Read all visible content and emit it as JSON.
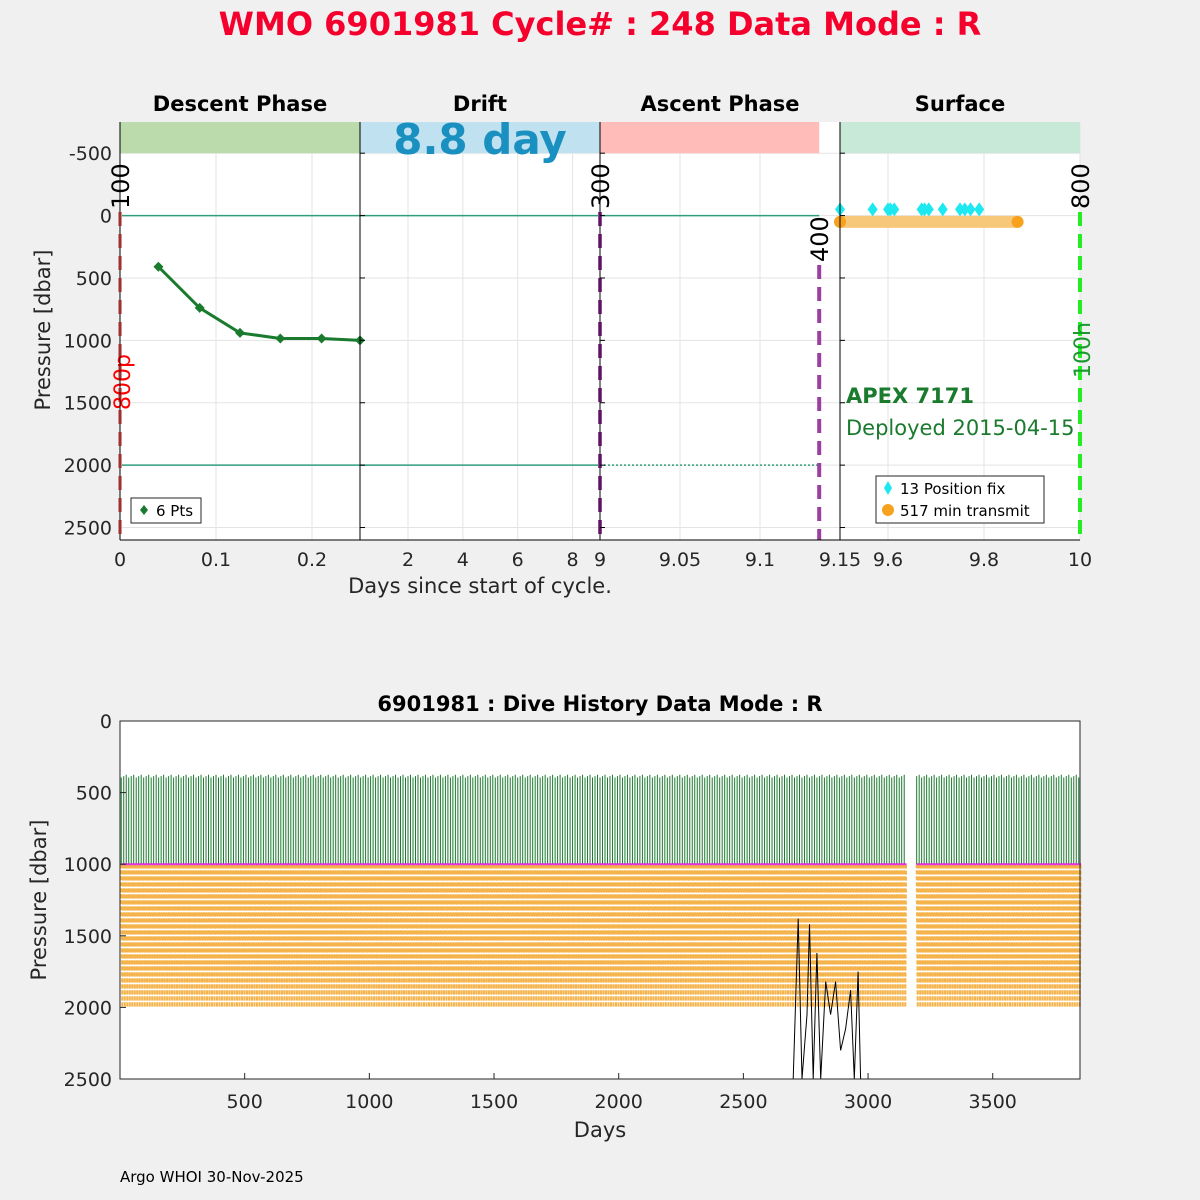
{
  "header": {
    "title": "WMO 6901981   Cycle# : 248   Data Mode : R",
    "title_color": "#f5002d"
  },
  "footer": {
    "credit": "Argo WHOI 30-Nov-2025"
  },
  "chart_data": [
    {
      "id": "cycle",
      "type": "line",
      "ylabel": "Pressure [dbar]",
      "xlabel": "Days since start of cycle.",
      "ylim": [
        -750,
        2600
      ],
      "y_reversed": true,
      "yticks": [
        -500,
        0,
        500,
        1000,
        1500,
        2000,
        2500
      ],
      "grid": true,
      "phases": [
        {
          "name": "Descent Phase",
          "xlim": [
            0,
            0.25
          ],
          "xticks": [
            0,
            0.1,
            0.2
          ],
          "xtick_labels": [
            "0",
            "0.1",
            "0.2"
          ],
          "band_color": "#bcdbad",
          "band_end": 0.25
        },
        {
          "name": "Drift",
          "xlim": [
            0.25,
            9
          ],
          "xticks": [
            2,
            4,
            6,
            8,
            9
          ],
          "xtick_labels": [
            "2",
            "4",
            "6",
            "8",
            "9"
          ],
          "band_color": "#c0e1ef",
          "band_end": 9,
          "band_text": "8.8 day"
        },
        {
          "name": "Ascent Phase",
          "xlim": [
            9,
            9.15
          ],
          "xticks": [
            9.05,
            9.1,
            9.15
          ],
          "xtick_labels": [
            "9.05",
            "9.1",
            "9.15"
          ],
          "band_color": "#ffbcb8",
          "band_end": 9.137
        },
        {
          "name": "Surface",
          "xlim": [
            9.5,
            10
          ],
          "xticks": [
            9.6,
            9.8,
            10
          ],
          "xtick_labels": [
            "9.6",
            "9.8",
            "10"
          ],
          "band_color": "#c8e8d8",
          "band_end": 10
        }
      ],
      "band_text_color": "#1a90c0",
      "reference_lines": [
        {
          "pressure": 0,
          "color": "#2e9e7e"
        },
        {
          "pressure": 2000,
          "color": "#2e9e7e"
        }
      ],
      "descent_profile": {
        "name": "6 Pts",
        "color": "#1a7a2e",
        "x": [
          0.04,
          0.083,
          0.125,
          0.167,
          0.21,
          0.25
        ],
        "y": [
          410,
          740,
          940,
          985,
          985,
          1000
        ]
      },
      "markers": [
        {
          "label": "100",
          "phase": 0,
          "x": 0,
          "color": "#f08080",
          "side_label": "800p",
          "side_color": "#ff0000"
        },
        {
          "label": "300",
          "phase": 2,
          "x": 9,
          "color": "#9b3fa0"
        },
        {
          "label": "400",
          "phase": 2,
          "x": 9.137,
          "color": "#9b3fa0"
        },
        {
          "label": "800",
          "phase": 3,
          "x": 10,
          "color": "#22ee22",
          "side_label": "100h",
          "side_color": "#1a9a2e"
        }
      ],
      "position_fix": {
        "name": "13 Position fix",
        "color": "#1ee8f0",
        "x": [
          9.5,
          9.568,
          9.6,
          9.605,
          9.613,
          9.67,
          9.676,
          9.685,
          9.714,
          9.75,
          9.76,
          9.772,
          9.79
        ],
        "y": [
          -50,
          -50,
          -50,
          -50,
          -50,
          -50,
          -50,
          -50,
          -50,
          -50,
          -50,
          -50,
          -50
        ]
      },
      "transmit": {
        "name": "517 min transmit",
        "color": "#f7a11d",
        "bar_color": "#f8c87a",
        "x": [
          9.5,
          9.87
        ],
        "y": [
          50,
          50
        ]
      },
      "float_model": "APEX 7171",
      "deployed": "Deployed 2015-04-15",
      "info_color": "#1a7a2e"
    },
    {
      "id": "history",
      "type": "line",
      "title": "6901981 : Dive History      Data Mode : R",
      "xlabel": "Days",
      "ylabel": "Pressure [dbar]",
      "xlim": [
        0,
        3850
      ],
      "ylim": [
        0,
        2500
      ],
      "y_reversed": true,
      "xticks": [
        500,
        1000,
        1500,
        2000,
        2500,
        3000,
        3500
      ],
      "yticks": [
        0,
        500,
        1000,
        1500,
        2000,
        2500
      ],
      "cycle_period_days": 10,
      "series": [
        {
          "color": "#1a7a2e",
          "pressure_range": [
            400,
            1000
          ]
        },
        {
          "color": "#ee22ee",
          "pressure_range": [
            1000,
            1000
          ]
        },
        {
          "color": "#f5b44b",
          "pressure_range": [
            1000,
            2000
          ]
        }
      ],
      "gaps_days": [
        [
          3150,
          3190
        ]
      ],
      "deep_excursions": {
        "color": "#000000",
        "x": [
          2700,
          2720,
          2735,
          2755,
          2765,
          2780,
          2795,
          2810,
          2830,
          2850,
          2870,
          2890,
          2910,
          2930,
          2945,
          2960,
          2970,
          3060
        ],
        "y": [
          2500,
          1380,
          2500,
          2050,
          1420,
          2500,
          1620,
          2500,
          1820,
          2050,
          1820,
          2300,
          2150,
          1880,
          2500,
          1750,
          2500,
          2370
        ]
      }
    }
  ]
}
